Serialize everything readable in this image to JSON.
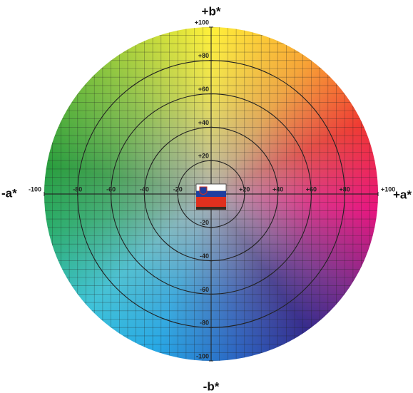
{
  "axes": {
    "b": {
      "positive_label": "+b*",
      "negative_label": "-b*",
      "ticks": [
        -100,
        -80,
        -60,
        -40,
        -20,
        {
          "value": 20,
          "label": "+20"
        },
        {
          "value": 40,
          "label": "+40"
        },
        {
          "value": 60,
          "label": "+60"
        },
        {
          "value": 80,
          "label": "+80"
        },
        {
          "value": 100,
          "label": "+100"
        }
      ]
    },
    "a": {
      "positive_label": "+a*",
      "negative_label": "-a*",
      "ticks": [
        -100,
        -80,
        -60,
        -40,
        -20,
        {
          "value": 20,
          "label": "+20"
        },
        {
          "value": 40,
          "label": "+40"
        },
        {
          "value": 60,
          "label": "+60"
        },
        {
          "value": 80,
          "label": "+80"
        },
        {
          "value": 100,
          "label": "+100"
        }
      ]
    }
  }
}
